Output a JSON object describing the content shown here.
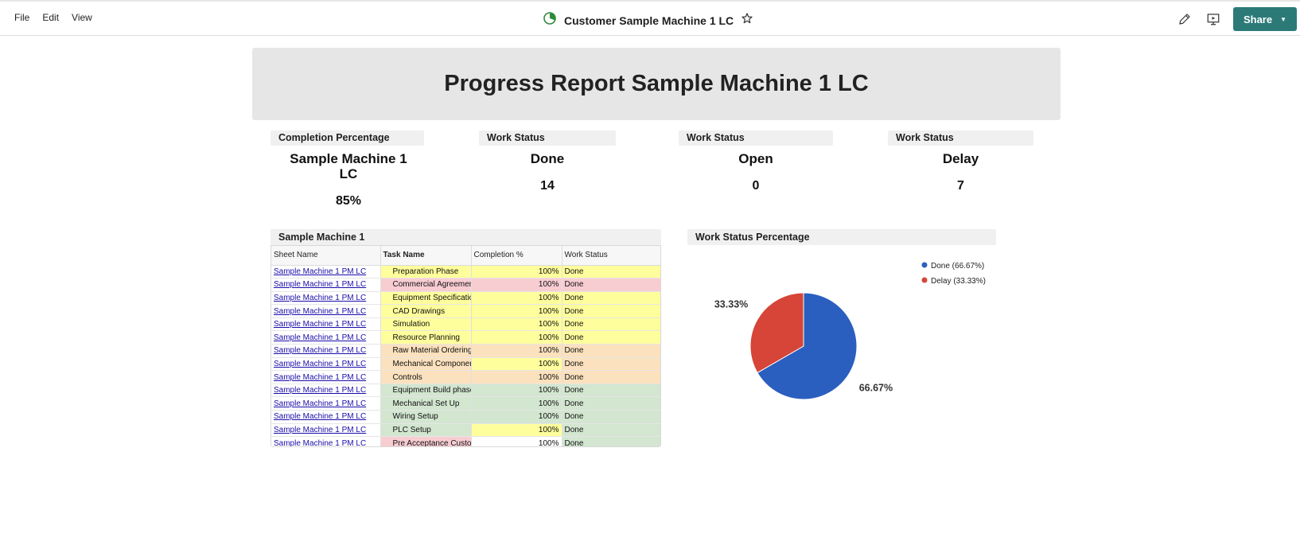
{
  "menu": {
    "file": "File",
    "edit": "Edit",
    "view": "View"
  },
  "doc": {
    "title": "Customer Sample Machine 1 LC"
  },
  "toolbar": {
    "share_label": "Share",
    "accent": "#2b7a78"
  },
  "banner": {
    "title": "Progress Report Sample Machine 1 LC"
  },
  "metrics": [
    {
      "header": "Completion Percentage",
      "name": "Sample Machine 1 LC",
      "value": "85%"
    },
    {
      "header": "Work Status",
      "name": "Done",
      "value": "14"
    },
    {
      "header": "Work Status",
      "name": "Open",
      "value": "0"
    },
    {
      "header": "Work Status",
      "name": "Delay",
      "value": "7"
    }
  ],
  "report": {
    "title": "Sample Machine 1",
    "columns": [
      "Sheet Name",
      "Task Name",
      "Completion %",
      "Work Status"
    ],
    "rows": [
      {
        "sheet": "Sample Machine 1 PM LC",
        "task": "Preparation Phase",
        "pct": "100%",
        "status": "Done",
        "task_color": "#fffe9c",
        "pct_color": "#fffe9c",
        "status_color": "#fffe9c"
      },
      {
        "sheet": "Sample Machine 1 PM LC",
        "task": "Commercial Agreement",
        "pct": "100%",
        "status": "Done",
        "task_color": "#f8cdd2",
        "pct_color": "#f8cdd2",
        "status_color": "#f8cdd2"
      },
      {
        "sheet": "Sample Machine 1 PM LC",
        "task": "Equipment Specifications",
        "pct": "100%",
        "status": "Done",
        "task_color": "#fffe9c",
        "pct_color": "#fffe9c",
        "status_color": "#fffe9c"
      },
      {
        "sheet": "Sample Machine 1 PM LC",
        "task": "CAD Drawings",
        "pct": "100%",
        "status": "Done",
        "task_color": "#fffe9c",
        "pct_color": "#fffe9c",
        "status_color": "#fffe9c"
      },
      {
        "sheet": "Sample Machine 1 PM LC",
        "task": "Simulation",
        "pct": "100%",
        "status": "Done",
        "task_color": "#fffe9c",
        "pct_color": "#fffe9c",
        "status_color": "#fffe9c"
      },
      {
        "sheet": "Sample Machine 1 PM LC",
        "task": "Resource Planning",
        "pct": "100%",
        "status": "Done",
        "task_color": "#fffe9c",
        "pct_color": "#fffe9c",
        "status_color": "#fffe9c"
      },
      {
        "sheet": "Sample Machine 1 PM LC",
        "task": "Raw Material Ordering",
        "pct": "100%",
        "status": "Done",
        "task_color": "#fbe1bd",
        "pct_color": "#fbe1bd",
        "status_color": "#fbe1bd"
      },
      {
        "sheet": "Sample Machine 1 PM LC",
        "task": "Mechanical Components",
        "pct": "100%",
        "status": "Done",
        "task_color": "#fbe1bd",
        "pct_color": "#fffe9c",
        "status_color": "#fbe1bd"
      },
      {
        "sheet": "Sample Machine 1 PM LC",
        "task": "Controls",
        "pct": "100%",
        "status": "Done",
        "task_color": "#fbe1bd",
        "pct_color": "#fbe1bd",
        "status_color": "#fbe1bd"
      },
      {
        "sheet": "Sample Machine 1 PM LC",
        "task": "Equipment Build phase",
        "pct": "100%",
        "status": "Done",
        "task_color": "#d2e6d0",
        "pct_color": "#d2e6d0",
        "status_color": "#d2e6d0"
      },
      {
        "sheet": "Sample Machine 1 PM LC",
        "task": "Mechanical Set Up",
        "pct": "100%",
        "status": "Done",
        "task_color": "#d2e6d0",
        "pct_color": "#d2e6d0",
        "status_color": "#d2e6d0"
      },
      {
        "sheet": "Sample Machine 1 PM LC",
        "task": "Wiring Setup",
        "pct": "100%",
        "status": "Done",
        "task_color": "#d2e6d0",
        "pct_color": "#d2e6d0",
        "status_color": "#d2e6d0"
      },
      {
        "sheet": "Sample Machine 1 PM LC",
        "task": "PLC Setup",
        "pct": "100%",
        "status": "Done",
        "task_color": "#d2e6d0",
        "pct_color": "#fffe9c",
        "status_color": "#d2e6d0"
      },
      {
        "sheet": "Sample Machine 1 PM LC",
        "task": "Pre Acceptance Customer",
        "pct": "100%",
        "status": "Done",
        "task_color": "#f8cdd2",
        "pct_color": "#ffffff",
        "status_color": "#d2e6d0"
      }
    ]
  },
  "chart_data": {
    "type": "pie",
    "title": "Work Status Percentage",
    "slices": [
      {
        "name": "Done (66.67%)",
        "value": 66.67,
        "label": "66.67%",
        "color": "#2b5fbf"
      },
      {
        "name": "Delay (33.33%)",
        "value": 33.33,
        "label": "33.33%",
        "color": "#d64538"
      }
    ],
    "legend": "top-right"
  }
}
